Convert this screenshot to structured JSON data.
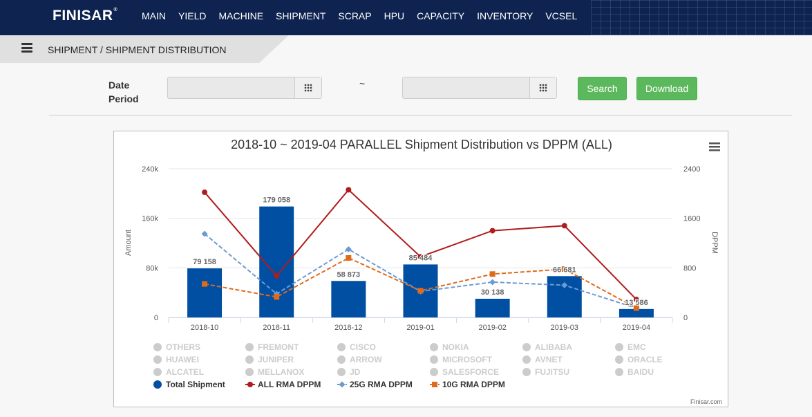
{
  "header": {
    "logo": "FINISAR",
    "logo_mark": "®",
    "nav": [
      "MAIN",
      "YIELD",
      "MACHINE",
      "SHIPMENT",
      "SCRAP",
      "HPU",
      "CAPACITY",
      "INVENTORY",
      "VCSEL"
    ]
  },
  "breadcrumb": "SHIPMENT / SHIPMENT DISTRIBUTION",
  "filters": {
    "date_label": "Date Period",
    "start_value": "",
    "end_value": "",
    "separator": "~",
    "search_label": "Search",
    "download_label": "Download"
  },
  "chart_data": {
    "type": "bar",
    "title": "2018-10 ~ 2019-04 PARALLEL Shipment Distribution vs DPPM (ALL)",
    "categories": [
      "2018-10",
      "2018-11",
      "2018-12",
      "2019-01",
      "2019-02",
      "2019-03",
      "2019-04"
    ],
    "y_left": {
      "label": "Amount",
      "range": [
        0,
        240000
      ],
      "ticks": [
        "0",
        "80k",
        "160k",
        "240k"
      ]
    },
    "y_right": {
      "label": "DPPM",
      "range": [
        0,
        2400
      ],
      "ticks": [
        "0",
        "800",
        "1600",
        "2400"
      ]
    },
    "grid": true,
    "bar_series": {
      "name": "Total Shipment",
      "color": "#004fa3",
      "values": [
        79158,
        179058,
        58873,
        85484,
        30138,
        66681,
        13586
      ],
      "labels": [
        "79 158",
        "179 058",
        "58 873",
        "85 484",
        "30 138",
        "66 681",
        "13 586"
      ]
    },
    "line_series": [
      {
        "name": "ALL RMA DPPM",
        "color": "#b01c1c",
        "dash": false,
        "marker": "circle",
        "values": [
          2020,
          670,
          2060,
          980,
          1400,
          1480,
          290
        ]
      },
      {
        "name": "25G RMA DPPM",
        "color": "#6c9bd1",
        "dash": true,
        "marker": "diamond",
        "values": [
          1350,
          380,
          1100,
          420,
          570,
          520,
          150
        ]
      },
      {
        "name": "10G RMA DPPM",
        "color": "#e06a1b",
        "dash": true,
        "marker": "square",
        "values": [
          540,
          330,
          960,
          430,
          700,
          780,
          150
        ]
      }
    ],
    "legend_placement": "bottom",
    "legend_inactive": [
      [
        "OTHERS",
        "FREMONT",
        "CISCO",
        "NOKIA",
        "ALIBABA",
        "EMC"
      ],
      [
        "HUAWEI",
        "JUNIPER",
        "ARROW",
        "MICROSOFT",
        "AVNET",
        "ORACLE"
      ],
      [
        "ALCATEL",
        "MELLANOX",
        "JD",
        "SALESFORCE",
        "FUJITSU",
        "BAIDU"
      ]
    ],
    "credit": "Finisar.com"
  }
}
